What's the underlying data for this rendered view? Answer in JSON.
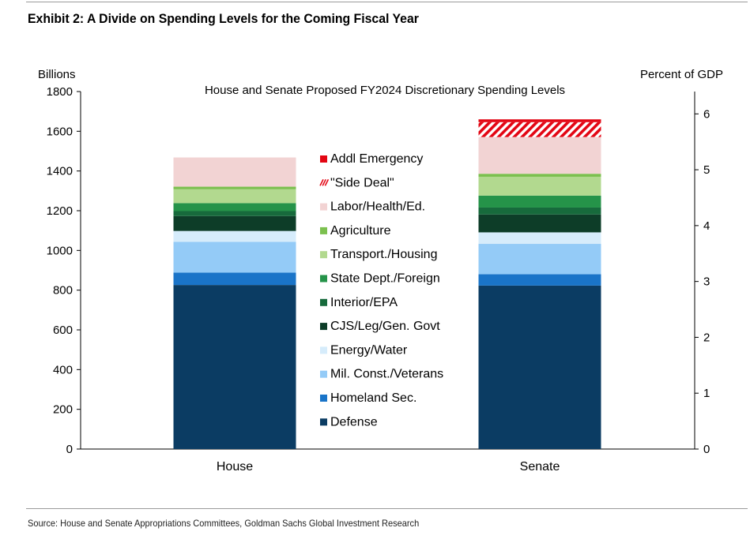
{
  "exhibit": {
    "title": "Exhibit 2: A Divide on Spending Levels for the Coming Fiscal Year",
    "source": "Source: House and Senate Appropriations Committees, Goldman Sachs Global Investment Research"
  },
  "colors": {
    "Defense": "#0b3c63",
    "Homeland Sec.": "#1a74c8",
    "Mil. Const./Veterans": "#94cbf7",
    "Energy/Water": "#d6ecfb",
    "CJS/Leg/Gen. Govt": "#0d3d28",
    "Interior/EPA": "#176a3c",
    "State Dept./Foreign": "#259349",
    "Transport./Housing": "#b2d98f",
    "Agriculture": "#7cc04f",
    "Labor/Health/Ed.": "#f2d3d3",
    "\"Side Deal\"": "#e30613",
    "Addl Emergency": "#e30613"
  },
  "chart_data": {
    "type": "bar",
    "stacked": true,
    "title": "House and Senate Proposed FY2024 Discretionary Spending Levels",
    "ylabel": "Billions",
    "y2label": "Percent of GDP",
    "ylim": [
      0,
      1800
    ],
    "y2lim": [
      0,
      6.4
    ],
    "yticks": [
      "0",
      "200",
      "400",
      "600",
      "800",
      "1000",
      "1200",
      "1400",
      "1600",
      "1800"
    ],
    "y2ticks": [
      "0",
      "1",
      "2",
      "3",
      "4",
      "5",
      "6"
    ],
    "categories": [
      "House",
      "Senate"
    ],
    "series": [
      {
        "name": "Defense",
        "values": [
          826,
          823
        ]
      },
      {
        "name": "Homeland Sec.",
        "values": [
          62,
          57
        ]
      },
      {
        "name": "Mil. Const./Veterans",
        "values": [
          155,
          153
        ]
      },
      {
        "name": "Energy/Water",
        "values": [
          55,
          58
        ]
      },
      {
        "name": "CJS/Leg/Gen. Govt",
        "values": [
          75,
          90
        ]
      },
      {
        "name": "Interior/EPA",
        "values": [
          25,
          35
        ]
      },
      {
        "name": "State Dept./Foreign",
        "values": [
          40,
          60
        ]
      },
      {
        "name": "Transport./Housing",
        "values": [
          70,
          95
        ]
      },
      {
        "name": "Agriculture",
        "values": [
          13,
          15
        ]
      },
      {
        "name": "Labor/Health/Ed.",
        "values": [
          147,
          185
        ]
      },
      {
        "name": "\"Side Deal\"",
        "values": [
          0,
          75
        ]
      },
      {
        "name": "Addl Emergency",
        "values": [
          0,
          14
        ]
      }
    ],
    "legend": [
      "Addl Emergency",
      "\"Side Deal\"",
      "Labor/Health/Ed.",
      "Agriculture",
      "Transport./Housing",
      "State Dept./Foreign",
      "Interior/EPA",
      "CJS/Leg/Gen. Govt",
      "Energy/Water",
      "Mil. Const./Veterans",
      "Homeland Sec.",
      "Defense"
    ],
    "legend_position": "center",
    "grid": false
  }
}
